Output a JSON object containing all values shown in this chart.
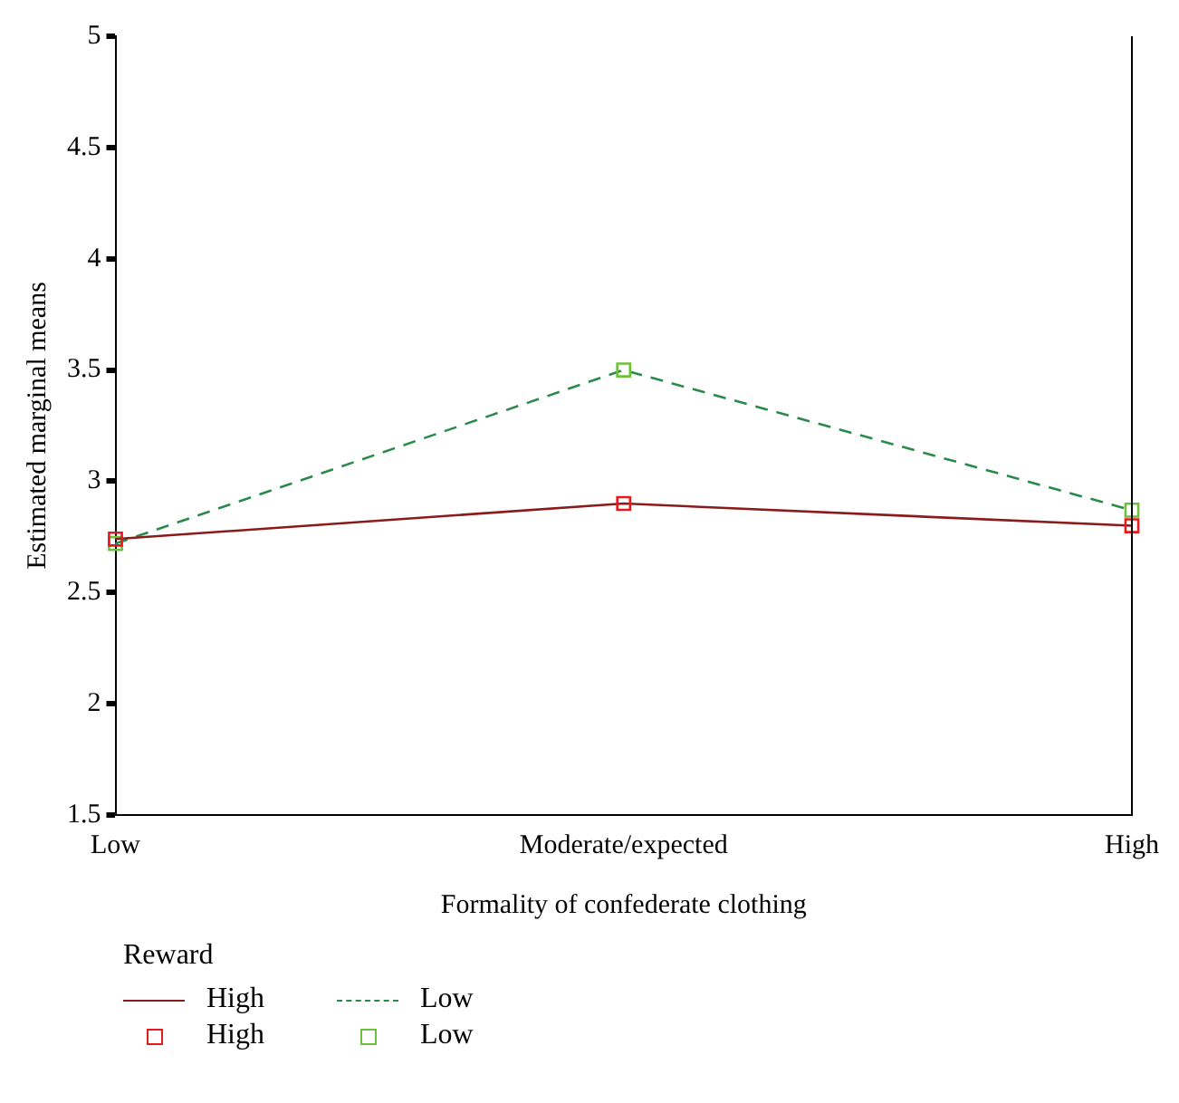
{
  "chart_data": {
    "type": "line",
    "xlabel": "Formality of confederate clothing",
    "ylabel": "Estimated marginal means",
    "legend_title": "Reward",
    "categories": [
      "Low",
      "Moderate/expected",
      "High"
    ],
    "series": [
      {
        "name": "High",
        "color": "#8b1a1a",
        "colors": [
          "#e8191c",
          "#e8191c",
          "#e8191c"
        ],
        "line_style": "solid",
        "values": [
          2.74,
          2.9,
          2.8
        ]
      },
      {
        "name": "Low",
        "color": "#2a8a4a",
        "colors": [
          "#6cc03a",
          "#6cc03a",
          "#6cc03a"
        ],
        "line_style": "dashed",
        "values": [
          2.72,
          3.5,
          2.87
        ]
      }
    ],
    "ylim": [
      1.5,
      5
    ],
    "yticks": [
      1.5,
      2,
      2.5,
      3,
      3.5,
      4,
      4.5,
      5
    ],
    "grid": false,
    "legend": "bottom left",
    "marker": "square"
  }
}
